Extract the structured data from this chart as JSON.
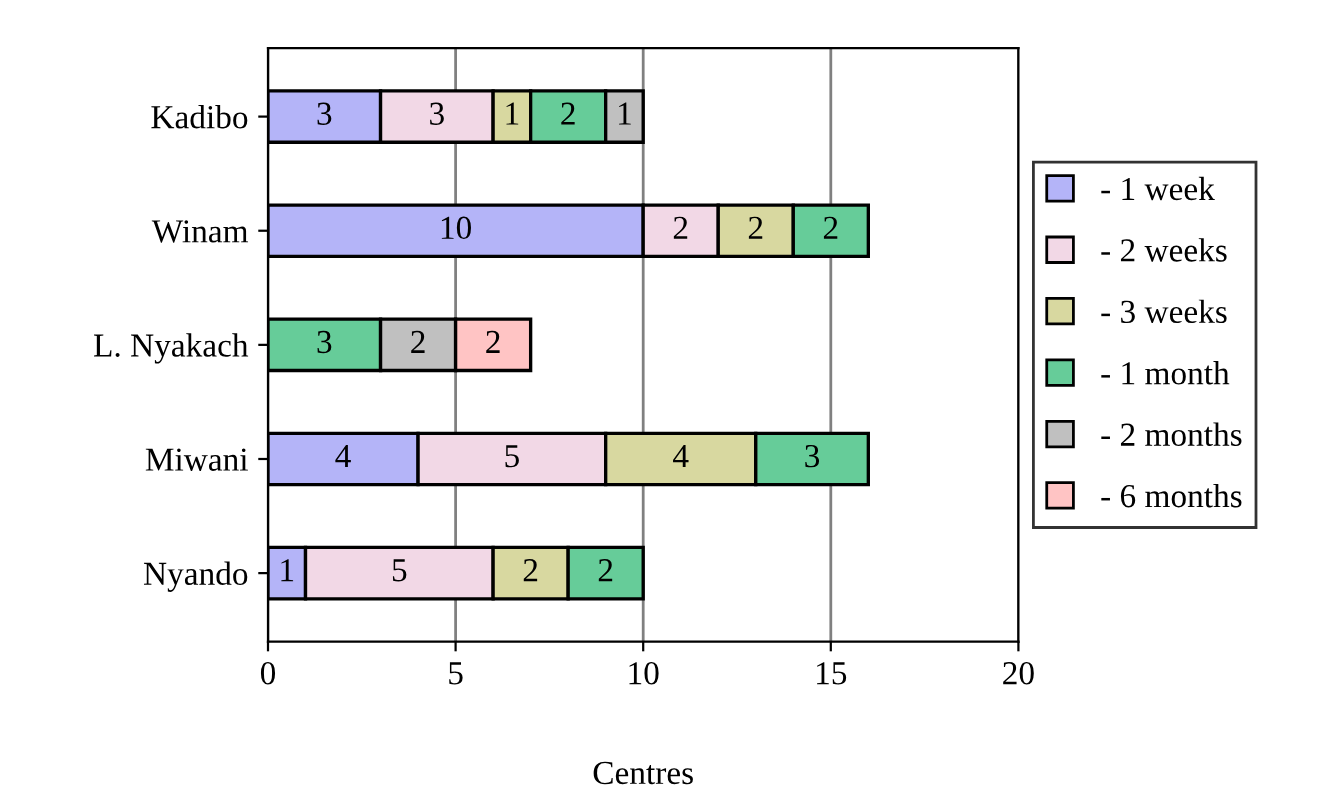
{
  "chart_data": {
    "type": "bar",
    "orientation": "horizontal",
    "stacked": true,
    "xlabel": "Centres",
    "categories": [
      "Kadibo",
      "Winam",
      "L. Nyakach",
      "Miwani",
      "Nyando"
    ],
    "series": [
      {
        "name": "- 1 week",
        "color": "#b4b4f8",
        "values": [
          3,
          10,
          null,
          4,
          1
        ]
      },
      {
        "name": "- 2 weeks",
        "color": "#f2d8e6",
        "values": [
          3,
          2,
          null,
          5,
          5
        ]
      },
      {
        "name": "- 3 weeks",
        "color": "#d8d8a0",
        "values": [
          1,
          2,
          null,
          4,
          2
        ]
      },
      {
        "name": "- 1 month",
        "color": "#66cc99",
        "values": [
          2,
          2,
          3,
          3,
          2
        ]
      },
      {
        "name": "- 2 months",
        "color": "#c0c0c0",
        "values": [
          1,
          null,
          2,
          null,
          null
        ]
      },
      {
        "name": "- 6 months",
        "color": "#ffc4c4",
        "values": [
          null,
          null,
          2,
          null,
          null
        ]
      }
    ],
    "xlim": [
      0,
      20
    ],
    "xticks": [
      0,
      5,
      10,
      15,
      20
    ],
    "grid": "x",
    "legend": "right",
    "data_labels": true
  }
}
